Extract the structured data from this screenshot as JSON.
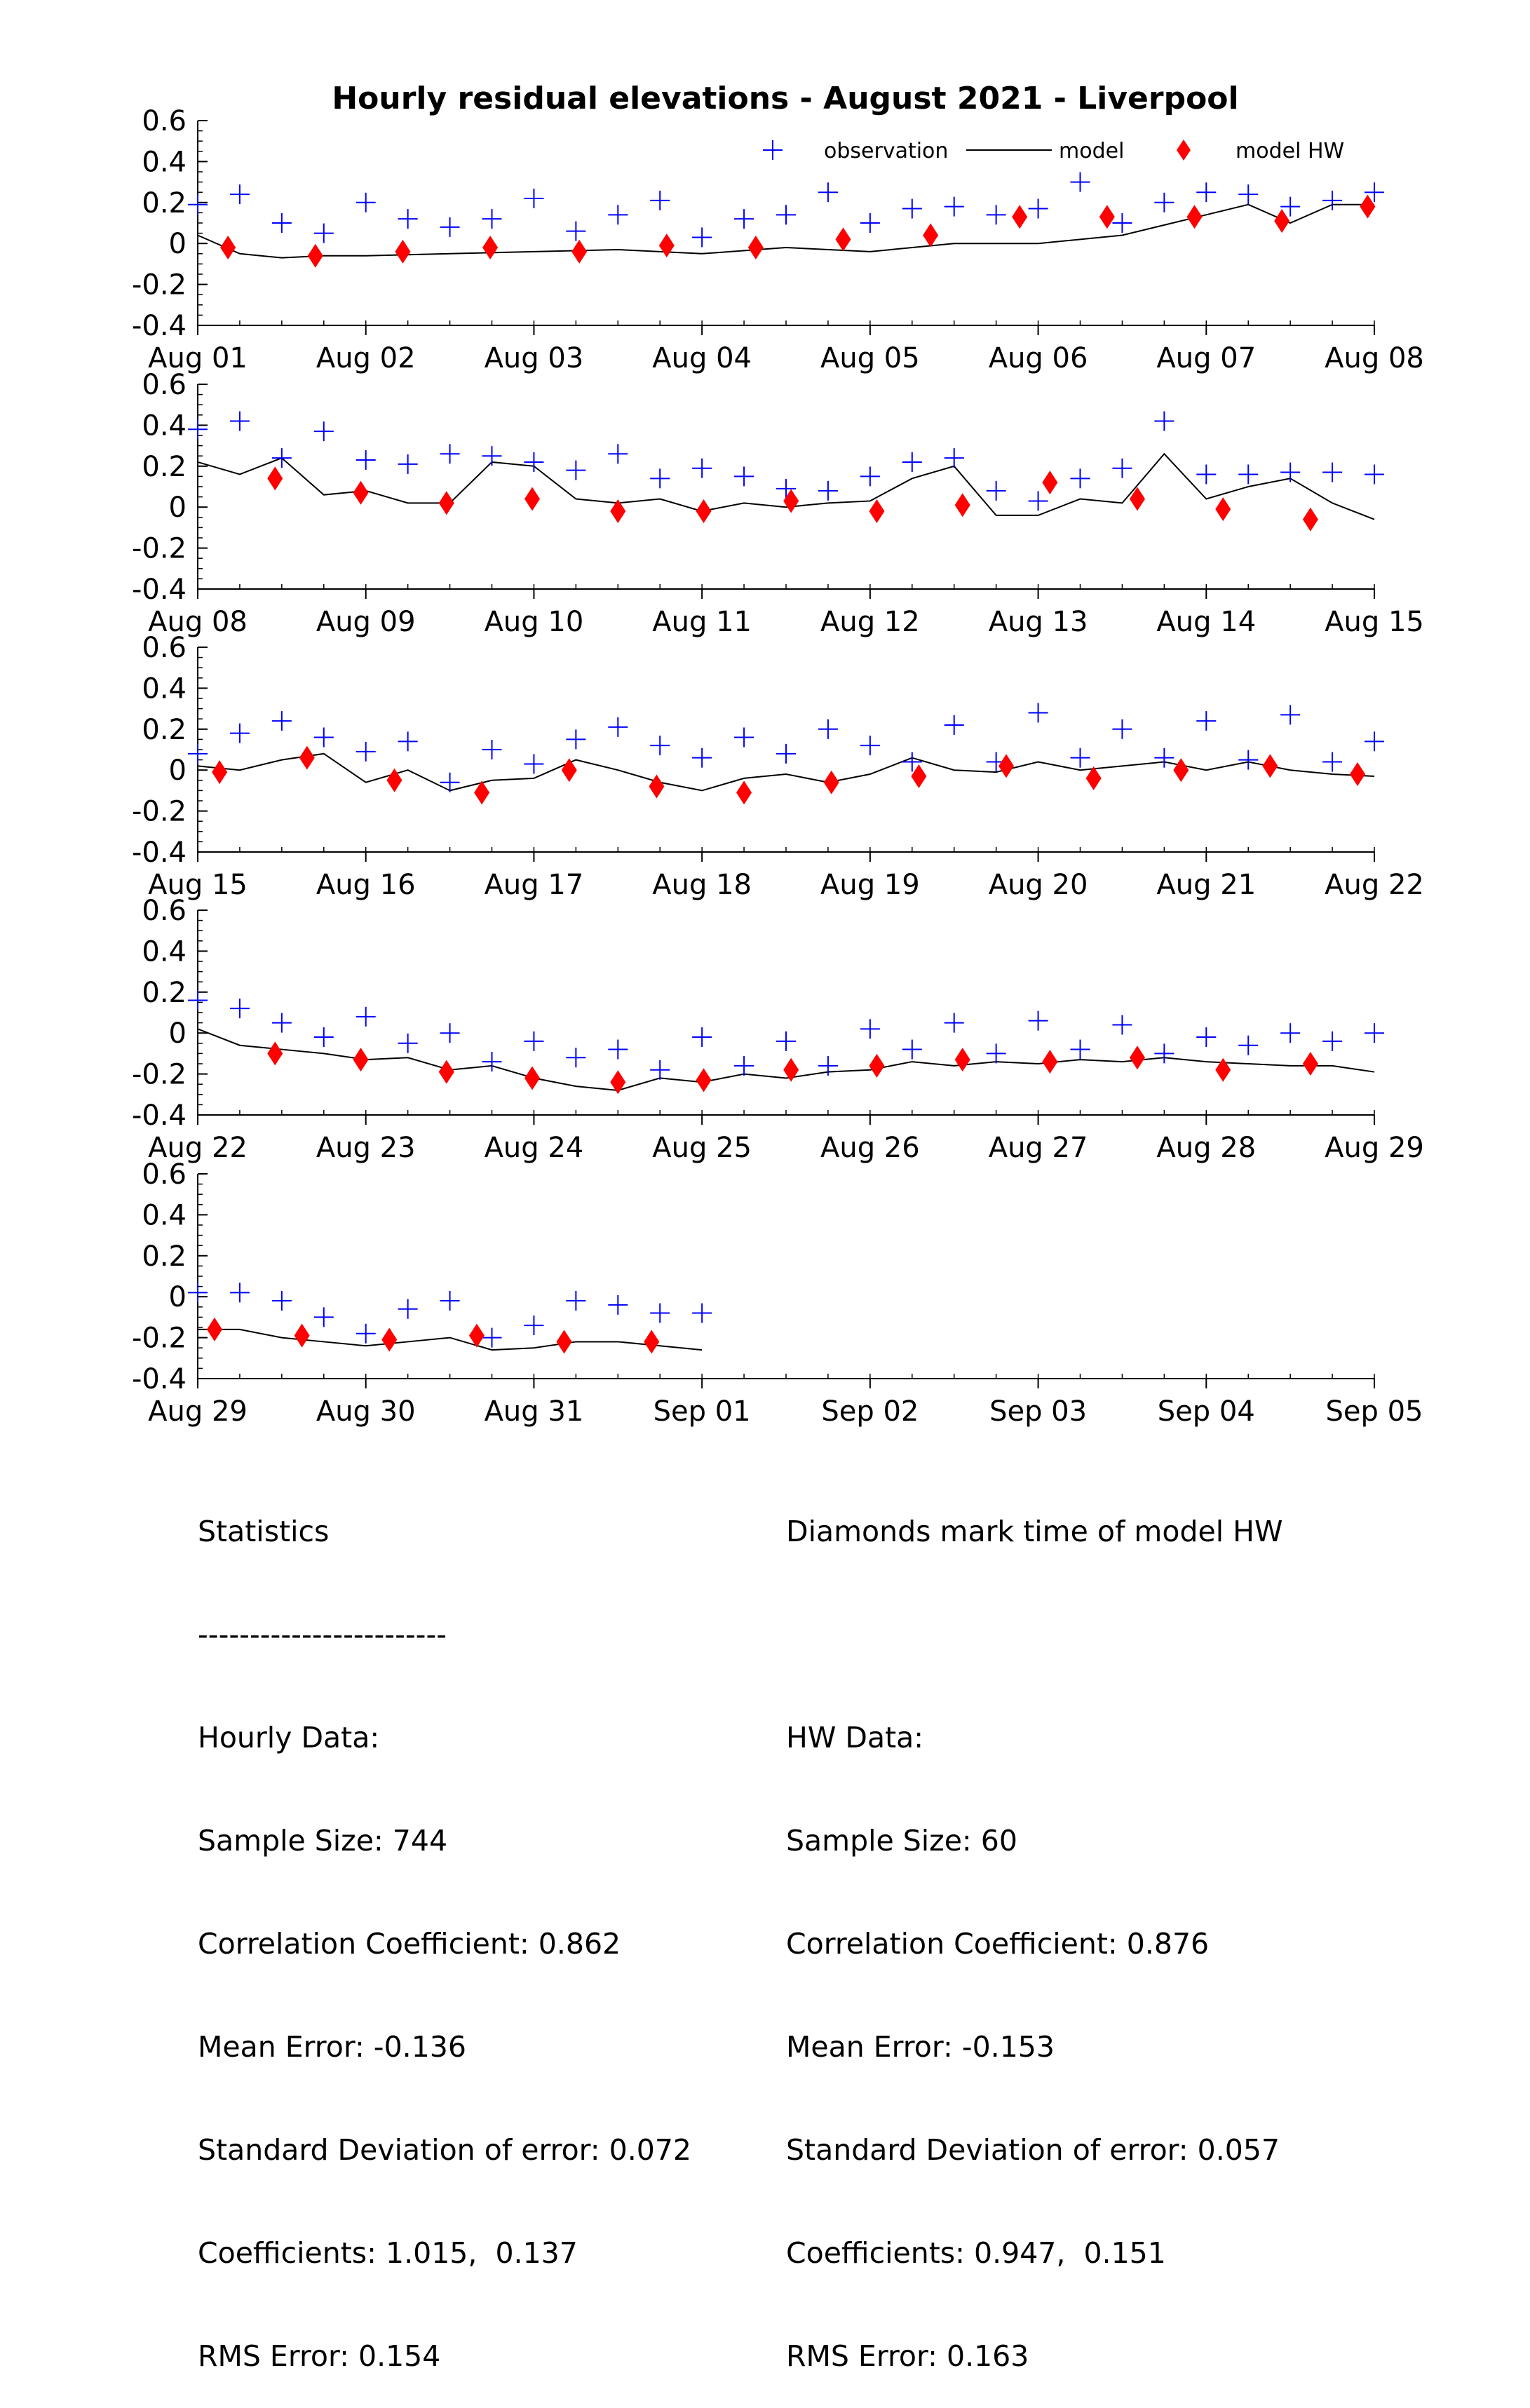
{
  "chart_data": {
    "type": "scatter",
    "title": "Hourly residual elevations - August  2021 - Liverpool",
    "xlabel": "",
    "ylabel": "",
    "ylim": [
      -0.4,
      0.6
    ],
    "yticks": [
      "0.6",
      "0.4",
      "0.2",
      "0",
      "-0.2",
      "-0.4"
    ],
    "grid": false,
    "legend": {
      "placement": "top-right",
      "entries": [
        "observation",
        "model",
        "model HW"
      ]
    },
    "colors": {
      "observation": "#0000ff",
      "model": "#000000",
      "model_hw": "#ff0000"
    },
    "panels": [
      {
        "xticks": [
          "Aug 01",
          "Aug 02",
          "Aug 03",
          "Aug 04",
          "Aug 05",
          "Aug 06",
          "Aug 07",
          "Aug 08"
        ],
        "obs_days": [
          0,
          0.25,
          0.5,
          0.75,
          1,
          1.25,
          1.5,
          1.75,
          2,
          2.25,
          2.5,
          2.75,
          3,
          3.25,
          3.5,
          3.75,
          4,
          4.25,
          4.5,
          4.75,
          5,
          5.25,
          5.5,
          5.75,
          6,
          6.25,
          6.5,
          6.75,
          7
        ],
        "obs_values": [
          0.19,
          0.24,
          0.1,
          0.05,
          0.2,
          0.12,
          0.08,
          0.12,
          0.22,
          0.06,
          0.14,
          0.21,
          0.03,
          0.12,
          0.14,
          0.25,
          0.1,
          0.17,
          0.18,
          0.14,
          0.17,
          0.3,
          0.1,
          0.2,
          0.25,
          0.24,
          0.18,
          0.21,
          0.25
        ],
        "model_days": [
          0,
          0.25,
          0.5,
          0.75,
          1,
          1.5,
          2,
          2.5,
          3,
          3.5,
          4,
          4.5,
          5,
          5.5,
          6,
          6.25,
          6.5,
          6.75,
          7
        ],
        "model_values": [
          0.04,
          -0.05,
          -0.07,
          -0.06,
          -0.06,
          -0.05,
          -0.04,
          -0.03,
          -0.05,
          -0.02,
          -0.04,
          0.0,
          0.0,
          0.04,
          0.14,
          0.19,
          0.1,
          0.19,
          0.19
        ],
        "hw_days": [
          0.18,
          0.7,
          1.22,
          1.74,
          2.27,
          2.79,
          3.32,
          3.84,
          4.36,
          4.89,
          5.41,
          5.93,
          6.45,
          6.96
        ],
        "hw_values": [
          -0.02,
          -0.06,
          -0.04,
          -0.02,
          -0.04,
          -0.01,
          -0.02,
          0.02,
          0.04,
          0.13,
          0.13,
          0.13,
          0.11,
          0.18
        ]
      },
      {
        "xticks": [
          "Aug 08",
          "Aug 09",
          "Aug 10",
          "Aug 11",
          "Aug 12",
          "Aug 13",
          "Aug 14",
          "Aug 15"
        ],
        "obs_days": [
          0,
          0.25,
          0.5,
          0.75,
          1,
          1.25,
          1.5,
          1.75,
          2,
          2.25,
          2.5,
          2.75,
          3,
          3.25,
          3.5,
          3.75,
          4,
          4.25,
          4.5,
          4.75,
          5,
          5.25,
          5.5,
          5.75,
          6,
          6.25,
          6.5,
          6.75,
          7
        ],
        "obs_values": [
          0.38,
          0.42,
          0.24,
          0.37,
          0.23,
          0.21,
          0.26,
          0.25,
          0.22,
          0.18,
          0.26,
          0.14,
          0.19,
          0.15,
          0.09,
          0.08,
          0.15,
          0.22,
          0.24,
          0.08,
          0.03,
          0.14,
          0.19,
          0.42,
          0.16,
          0.16,
          0.17,
          0.17,
          0.16
        ],
        "model_days": [
          0,
          0.25,
          0.5,
          0.75,
          1,
          1.25,
          1.5,
          1.75,
          2,
          2.25,
          2.5,
          2.75,
          3,
          3.25,
          3.5,
          3.75,
          4,
          4.25,
          4.5,
          4.75,
          5,
          5.25,
          5.5,
          5.75,
          6,
          6.25,
          6.5,
          6.75,
          7
        ],
        "model_values": [
          0.22,
          0.16,
          0.24,
          0.06,
          0.08,
          0.02,
          0.02,
          0.22,
          0.2,
          0.04,
          0.02,
          0.04,
          -0.02,
          0.02,
          0.0,
          0.02,
          0.03,
          0.14,
          0.2,
          -0.04,
          -0.04,
          0.04,
          0.02,
          0.26,
          0.04,
          0.1,
          0.14,
          0.02,
          -0.06
        ],
        "hw_days": [
          0.46,
          0.97,
          1.48,
          1.99,
          2.5,
          3.01,
          3.53,
          4.04,
          4.55,
          5.07,
          5.59,
          6.1,
          6.62
        ],
        "hw_values": [
          0.14,
          0.07,
          0.02,
          0.04,
          -0.02,
          -0.02,
          0.03,
          -0.02,
          0.01,
          0.12,
          0.04,
          -0.01,
          -0.06
        ]
      },
      {
        "xticks": [
          "Aug 15",
          "Aug 16",
          "Aug 17",
          "Aug 18",
          "Aug 19",
          "Aug 20",
          "Aug 21",
          "Aug 22"
        ],
        "obs_days": [
          0,
          0.25,
          0.5,
          0.75,
          1,
          1.25,
          1.5,
          1.75,
          2,
          2.25,
          2.5,
          2.75,
          3,
          3.25,
          3.5,
          3.75,
          4,
          4.25,
          4.5,
          4.75,
          5,
          5.25,
          5.5,
          5.75,
          6,
          6.25,
          6.5,
          6.75,
          7
        ],
        "obs_values": [
          0.08,
          0.18,
          0.24,
          0.16,
          0.09,
          0.14,
          -0.06,
          0.1,
          0.03,
          0.15,
          0.21,
          0.12,
          0.06,
          0.16,
          0.08,
          0.2,
          0.12,
          0.04,
          0.22,
          0.04,
          0.28,
          0.06,
          0.2,
          0.06,
          0.24,
          0.05,
          0.27,
          0.04,
          0.14
        ],
        "model_days": [
          0,
          0.25,
          0.5,
          0.75,
          1,
          1.25,
          1.5,
          1.75,
          2,
          2.25,
          2.5,
          2.75,
          3,
          3.25,
          3.5,
          3.75,
          4,
          4.25,
          4.5,
          4.75,
          5,
          5.25,
          5.5,
          5.75,
          6,
          6.25,
          6.5,
          6.75,
          7
        ],
        "model_values": [
          0.02,
          0.0,
          0.05,
          0.08,
          -0.06,
          0.0,
          -0.1,
          -0.05,
          -0.04,
          0.05,
          0.0,
          -0.06,
          -0.1,
          -0.04,
          -0.02,
          -0.06,
          -0.02,
          0.06,
          0.0,
          -0.01,
          0.04,
          0.0,
          0.02,
          0.04,
          0.0,
          0.04,
          0.0,
          -0.02,
          -0.03
        ],
        "hw_days": [
          0.13,
          0.65,
          1.17,
          1.69,
          2.21,
          2.73,
          3.25,
          3.77,
          4.29,
          4.81,
          5.33,
          5.85,
          6.38,
          6.9
        ],
        "hw_values": [
          -0.01,
          0.06,
          -0.05,
          -0.11,
          0.0,
          -0.08,
          -0.11,
          -0.06,
          -0.03,
          0.02,
          -0.04,
          0.0,
          0.02,
          -0.02
        ]
      },
      {
        "xticks": [
          "Aug 22",
          "Aug 23",
          "Aug 24",
          "Aug 25",
          "Aug 26",
          "Aug 27",
          "Aug 28",
          "Aug 29"
        ],
        "obs_days": [
          0,
          0.25,
          0.5,
          0.75,
          1,
          1.25,
          1.5,
          1.75,
          2,
          2.25,
          2.5,
          2.75,
          3,
          3.25,
          3.5,
          3.75,
          4,
          4.25,
          4.5,
          4.75,
          5,
          5.25,
          5.5,
          5.75,
          6,
          6.25,
          6.5,
          6.75,
          7
        ],
        "obs_values": [
          0.16,
          0.12,
          0.05,
          -0.02,
          0.08,
          -0.05,
          0.0,
          -0.14,
          -0.04,
          -0.12,
          -0.08,
          -0.18,
          -0.02,
          -0.16,
          -0.04,
          -0.16,
          0.02,
          -0.08,
          0.05,
          -0.1,
          0.06,
          -0.08,
          0.04,
          -0.1,
          -0.02,
          -0.06,
          0.0,
          -0.04,
          0.0
        ],
        "model_days": [
          0,
          0.25,
          0.5,
          0.75,
          1,
          1.25,
          1.5,
          1.75,
          2,
          2.25,
          2.5,
          2.75,
          3,
          3.25,
          3.5,
          3.75,
          4,
          4.25,
          4.5,
          4.75,
          5,
          5.25,
          5.5,
          5.75,
          6,
          6.25,
          6.5,
          6.75,
          7
        ],
        "model_values": [
          0.02,
          -0.06,
          -0.08,
          -0.1,
          -0.13,
          -0.12,
          -0.18,
          -0.16,
          -0.22,
          -0.26,
          -0.28,
          -0.22,
          -0.24,
          -0.2,
          -0.22,
          -0.19,
          -0.18,
          -0.14,
          -0.16,
          -0.14,
          -0.15,
          -0.13,
          -0.14,
          -0.12,
          -0.14,
          -0.15,
          -0.16,
          -0.16,
          -0.19
        ],
        "hw_days": [
          0.46,
          0.97,
          1.48,
          1.99,
          2.5,
          3.01,
          3.53,
          4.04,
          4.55,
          5.07,
          5.59,
          6.1,
          6.62
        ],
        "hw_values": [
          -0.1,
          -0.13,
          -0.19,
          -0.22,
          -0.24,
          -0.23,
          -0.18,
          -0.16,
          -0.13,
          -0.14,
          -0.12,
          -0.18,
          -0.15
        ]
      },
      {
        "xticks": [
          "Aug 29",
          "Aug 30",
          "Aug 31",
          "Sep 01",
          "Sep 02",
          "Sep 03",
          "Sep 04",
          "Sep 05"
        ],
        "obs_days": [
          0,
          0.25,
          0.5,
          0.75,
          1,
          1.25,
          1.5,
          1.75,
          2,
          2.25,
          2.5,
          2.75,
          3
        ],
        "obs_values": [
          0.02,
          0.02,
          -0.02,
          -0.1,
          -0.18,
          -0.06,
          -0.02,
          -0.2,
          -0.14,
          -0.02,
          -0.04,
          -0.08,
          -0.08
        ],
        "model_days": [
          0,
          0.25,
          0.5,
          0.75,
          1,
          1.25,
          1.5,
          1.75,
          2,
          2.25,
          2.5,
          2.75,
          3
        ],
        "model_values": [
          -0.16,
          -0.16,
          -0.2,
          -0.22,
          -0.24,
          -0.22,
          -0.2,
          -0.26,
          -0.25,
          -0.22,
          -0.22,
          -0.24,
          -0.26
        ],
        "hw_days": [
          0.1,
          0.62,
          1.14,
          1.66,
          2.18,
          2.7
        ],
        "hw_values": [
          -0.16,
          -0.19,
          -0.21,
          -0.19,
          -0.22,
          -0.22
        ]
      }
    ]
  },
  "stats_left": {
    "lines": [
      "Statistics",
      "------------------------",
      "Hourly Data:",
      "Sample Size: 744",
      "Correlation Coefficient: 0.862",
      "Mean Error: -0.136",
      "Standard Deviation of error: 0.072",
      "Coefficients: 1.015,  0.137",
      "RMS Error: 0.154"
    ]
  },
  "stats_right": {
    "lines": [
      "Diamonds mark time of model HW",
      "",
      "HW Data:",
      "Sample Size: 60",
      "Correlation Coefficient: 0.876",
      "Mean Error: -0.153",
      "Standard Deviation of error: 0.057",
      "Coefficients: 0.947,  0.151",
      "RMS Error: 0.163"
    ]
  }
}
